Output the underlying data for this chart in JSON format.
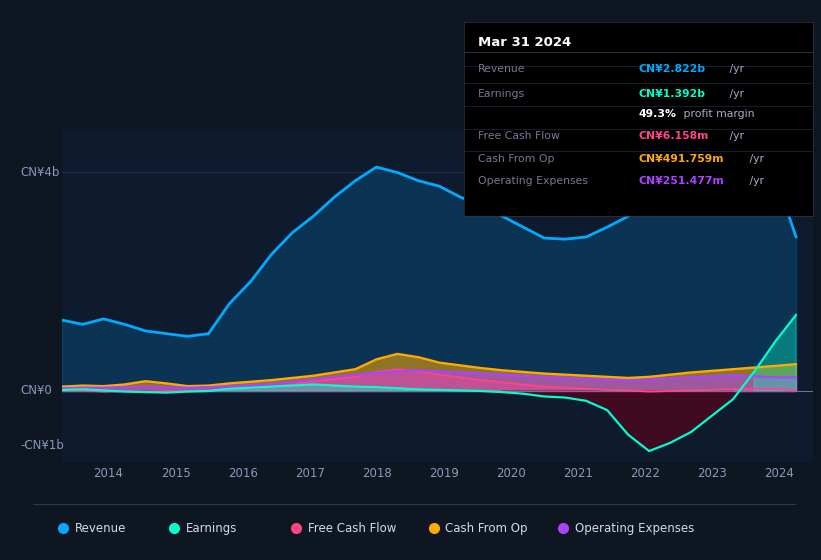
{
  "bg_color": "#0e1621",
  "plot_bg_color": "#0e1a2e",
  "y_label_top": "CN¥4b",
  "y_label_zero": "CN¥0",
  "y_label_neg": "-CN¥1b",
  "x_ticks": [
    "2014",
    "2015",
    "2016",
    "2017",
    "2018",
    "2019",
    "2020",
    "2021",
    "2022",
    "2023",
    "2024"
  ],
  "x_tick_years": [
    2014,
    2015,
    2016,
    2017,
    2018,
    2019,
    2020,
    2021,
    2022,
    2023,
    2024
  ],
  "colors": {
    "revenue": "#00aaff",
    "earnings": "#00ffcc",
    "free_cash_flow": "#ff4488",
    "cash_from_op": "#ffaa00",
    "operating_expenses": "#aa44ff"
  },
  "legend": [
    {
      "label": "Revenue",
      "color": "#00aaff"
    },
    {
      "label": "Earnings",
      "color": "#00ffcc"
    },
    {
      "label": "Free Cash Flow",
      "color": "#ff4488"
    },
    {
      "label": "Cash From Op",
      "color": "#ffaa00"
    },
    {
      "label": "Operating Expenses",
      "color": "#aa44ff"
    }
  ],
  "tooltip_title": "Mar 31 2024",
  "tooltip_rows": [
    {
      "label": "Revenue",
      "value": "CN¥2.822b",
      "suffix": " /yr",
      "color": "#00aaff"
    },
    {
      "label": "Earnings",
      "value": "CN¥1.392b",
      "suffix": " /yr",
      "color": "#00ffcc"
    },
    {
      "label": "",
      "value": "49.3%",
      "suffix": " profit margin",
      "color": "#ffffff"
    },
    {
      "label": "Free Cash Flow",
      "value": "CN¥6.158m",
      "suffix": " /yr",
      "color": "#ff4488"
    },
    {
      "label": "Cash From Op",
      "value": "CN¥491.759m",
      "suffix": " /yr",
      "color": "#ffaa00"
    },
    {
      "label": "Operating Expenses",
      "value": "CN¥251.477m",
      "suffix": " /yr",
      "color": "#aa44ff"
    }
  ],
  "ymin": -1.3,
  "ymax": 4.8,
  "xmin": 2013.3,
  "xmax": 2024.5,
  "revenue": [
    1.3,
    1.22,
    1.32,
    1.22,
    1.1,
    1.05,
    1.0,
    1.05,
    1.6,
    2.0,
    2.5,
    2.9,
    3.2,
    3.55,
    3.85,
    4.1,
    4.0,
    3.85,
    3.75,
    3.55,
    3.4,
    3.2,
    3.0,
    2.8,
    2.78,
    2.82,
    3.0,
    3.2,
    3.4,
    3.55,
    3.7,
    3.8,
    3.85,
    3.9,
    3.95,
    2.822
  ],
  "earnings": [
    0.02,
    0.03,
    0.01,
    -0.01,
    -0.02,
    -0.03,
    -0.01,
    0.0,
    0.04,
    0.06,
    0.08,
    0.1,
    0.12,
    0.1,
    0.08,
    0.07,
    0.05,
    0.03,
    0.02,
    0.01,
    0.0,
    -0.02,
    -0.05,
    -0.1,
    -0.12,
    -0.18,
    -0.35,
    -0.8,
    -1.1,
    -0.95,
    -0.75,
    -0.45,
    -0.15,
    0.35,
    0.9,
    1.392
  ],
  "free_cash_flow": [
    0.01,
    0.01,
    -0.01,
    0.0,
    -0.01,
    0.0,
    0.0,
    0.01,
    0.04,
    0.06,
    0.08,
    0.12,
    0.18,
    0.22,
    0.26,
    0.35,
    0.4,
    0.36,
    0.3,
    0.25,
    0.2,
    0.16,
    0.12,
    0.08,
    0.06,
    0.04,
    0.02,
    0.01,
    -0.01,
    0.0,
    0.01,
    0.02,
    0.03,
    0.04,
    0.04,
    0.006
  ],
  "cash_from_op": [
    0.08,
    0.1,
    0.09,
    0.12,
    0.18,
    0.14,
    0.09,
    0.1,
    0.14,
    0.17,
    0.2,
    0.24,
    0.28,
    0.34,
    0.4,
    0.58,
    0.68,
    0.62,
    0.52,
    0.47,
    0.42,
    0.38,
    0.35,
    0.32,
    0.3,
    0.28,
    0.26,
    0.24,
    0.26,
    0.3,
    0.34,
    0.37,
    0.4,
    0.43,
    0.46,
    0.492
  ],
  "operating_expenses": [
    0.05,
    0.06,
    0.06,
    0.07,
    0.08,
    0.07,
    0.06,
    0.07,
    0.09,
    0.11,
    0.13,
    0.17,
    0.21,
    0.26,
    0.3,
    0.33,
    0.36,
    0.38,
    0.36,
    0.34,
    0.32,
    0.3,
    0.28,
    0.26,
    0.24,
    0.22,
    0.21,
    0.19,
    0.21,
    0.23,
    0.25,
    0.27,
    0.29,
    0.27,
    0.25,
    0.251
  ]
}
